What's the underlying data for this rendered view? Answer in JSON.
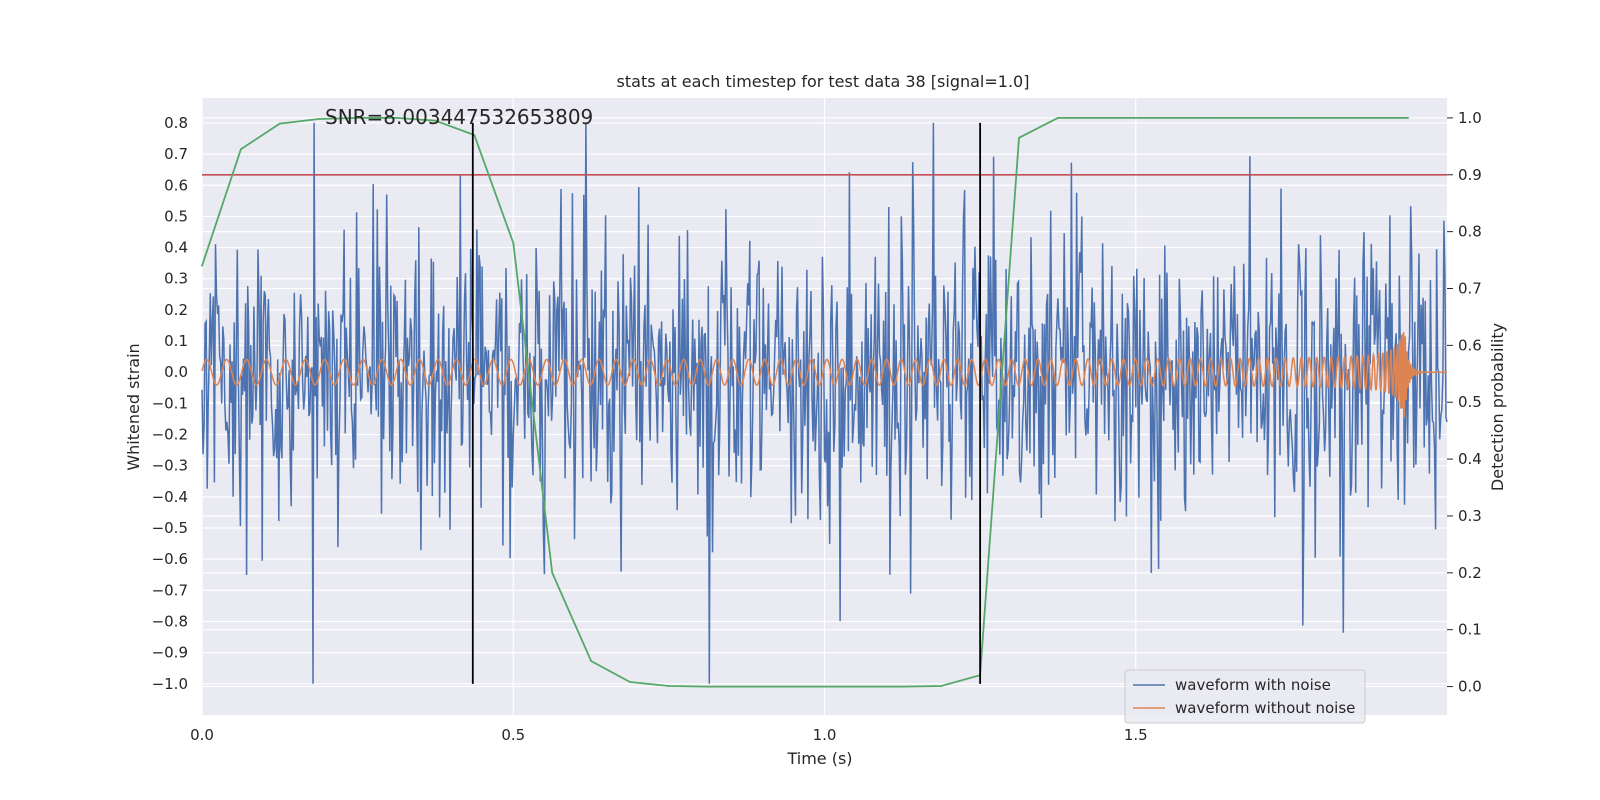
{
  "chart_data": {
    "type": "line",
    "title": "stats at each timestep for test data 38 [signal=1.0]",
    "annotation": "SNR=8.003447532653809",
    "xlabel": "Time (s)",
    "ylabel_left": "Whitened strain",
    "ylabel_right": "Detection probability",
    "xlim": [
      0.0,
      2.0
    ],
    "ylim_left": [
      -1.1,
      0.88
    ],
    "ylim_right": [
      -0.05,
      1.035
    ],
    "x_ticks": [
      0.0,
      0.5,
      1.0,
      1.5
    ],
    "x_tick_labels": [
      "0.0",
      "0.5",
      "1.0",
      "1.5"
    ],
    "y_left_ticks": [
      0.8,
      0.7,
      0.6,
      0.5,
      0.4,
      0.3,
      0.2,
      0.1,
      0.0,
      -0.1,
      -0.2,
      -0.3,
      -0.4,
      -0.5,
      -0.6,
      -0.7,
      -0.8,
      -0.9,
      -1.0
    ],
    "y_left_tick_labels": [
      "0.8",
      "0.7",
      "0.6",
      "0.5",
      "0.4",
      "0.3",
      "0.2",
      "0.1",
      "0.0",
      "−0.1",
      "−0.2",
      "−0.3",
      "−0.4",
      "−0.5",
      "−0.6",
      "−0.7",
      "−0.8",
      "−0.9",
      "−1.0"
    ],
    "y_right_ticks": [
      1.0,
      0.9,
      0.8,
      0.7,
      0.6,
      0.5,
      0.4,
      0.3,
      0.2,
      0.1,
      0.0
    ],
    "y_right_tick_labels": [
      "1.0",
      "0.9",
      "0.8",
      "0.7",
      "0.6",
      "0.5",
      "0.4",
      "0.3",
      "0.2",
      "0.1",
      "0.0"
    ],
    "threshold": {
      "value": 0.9,
      "axis": "right",
      "color": "#c44e52"
    },
    "vertical_lines": [
      {
        "x": 0.435,
        "y_range": [
          -1.0,
          0.8
        ],
        "color": "#000000"
      },
      {
        "x": 1.25,
        "y_range": [
          -1.0,
          0.8
        ],
        "color": "#000000"
      }
    ],
    "series": [
      {
        "name": "waveform with noise",
        "axis": "left",
        "color": "#4c72b0",
        "kind": "noise",
        "t_range": [
          0.0,
          2.0
        ],
        "samples": 1200,
        "amplitude_range": [
          -1.0,
          0.8
        ]
      },
      {
        "name": "waveform without noise",
        "axis": "left",
        "color": "#dd8452",
        "kind": "chirp",
        "t_range": [
          0.0,
          2.0
        ],
        "merger_time": 1.93,
        "peak_amplitude": 0.19
      },
      {
        "name": "detection probability",
        "axis": "right",
        "color": "#55a868",
        "x": [
          0.0,
          0.0625,
          0.125,
          0.1875,
          0.25,
          0.3125,
          0.375,
          0.4375,
          0.5,
          0.5625,
          0.625,
          0.6875,
          0.75,
          0.8125,
          0.875,
          0.9375,
          1.0,
          1.0625,
          1.125,
          1.1875,
          1.25,
          1.3125,
          1.375,
          1.4375,
          1.5,
          1.5625,
          1.625,
          1.6875,
          1.75,
          1.8125,
          1.875,
          1.9375
        ],
        "y": [
          0.74,
          0.945,
          0.99,
          0.998,
          1.0,
          1.0,
          0.995,
          0.97,
          0.78,
          0.2,
          0.045,
          0.008,
          0.001,
          0.0,
          0.0,
          0.0,
          0.0,
          0.0,
          0.0,
          0.001,
          0.02,
          0.965,
          1.0,
          1.0,
          1.0,
          1.0,
          1.0,
          1.0,
          1.0,
          1.0,
          1.0,
          1.0
        ]
      }
    ],
    "legend": {
      "position": "lower-right",
      "entries": [
        "waveform with noise",
        "waveform without noise"
      ]
    }
  }
}
